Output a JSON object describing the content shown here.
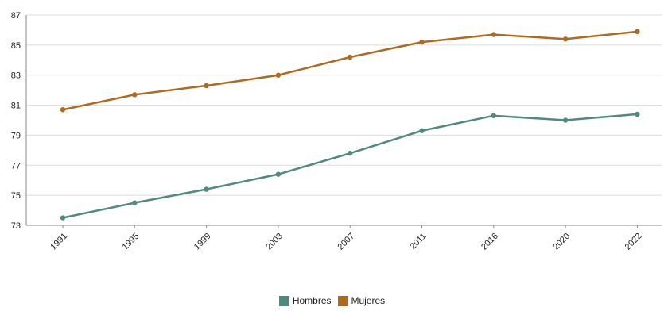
{
  "chart_data": {
    "type": "line",
    "x": [
      "1991",
      "1995",
      "1999",
      "2003",
      "2007",
      "2011",
      "2016",
      "2020",
      "2022"
    ],
    "y_ticks": [
      "73",
      "75",
      "77",
      "79",
      "81",
      "83",
      "85",
      "87"
    ],
    "ylim": [
      73,
      87
    ],
    "grid": "horizontal",
    "legend_position": "bottom-center",
    "series": [
      {
        "name": "Hombres",
        "color": "#4f8a7e",
        "values": [
          73.5,
          74.5,
          75.4,
          76.4,
          77.8,
          79.3,
          80.3,
          80.0,
          80.4
        ]
      },
      {
        "name": "Mujeres",
        "color": "#b06a1e",
        "values": [
          80.7,
          81.7,
          82.3,
          83.0,
          84.2,
          85.2,
          85.7,
          85.4,
          85.9
        ]
      }
    ]
  }
}
